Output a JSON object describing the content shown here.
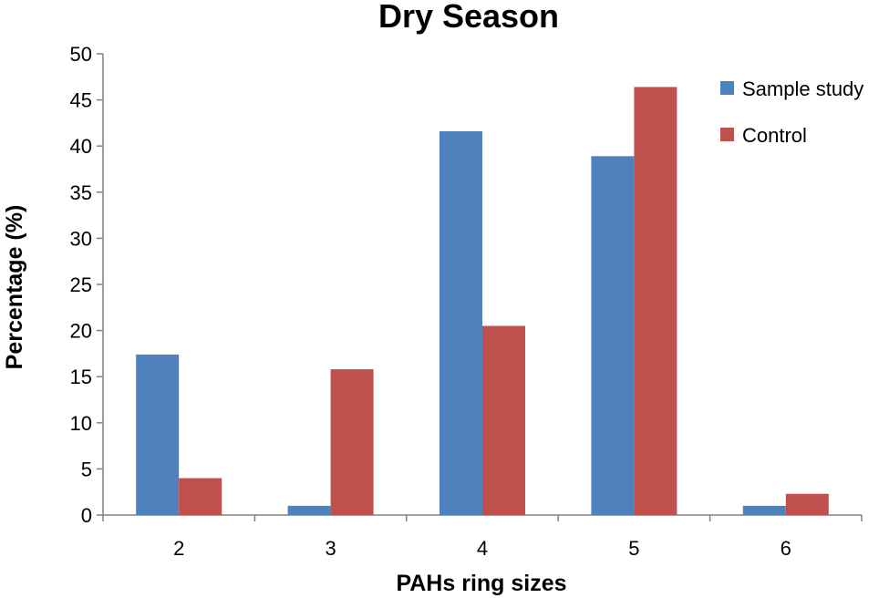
{
  "chart_data": {
    "type": "bar",
    "title": "Dry Season",
    "xlabel": "PAHs ring sizes",
    "ylabel": "Percentage (%)",
    "categories": [
      "2",
      "3",
      "4",
      "5",
      "6"
    ],
    "series": [
      {
        "name": "Sample study",
        "color": "#4f81bd",
        "values": [
          17.4,
          1.0,
          41.6,
          38.9,
          1.0
        ]
      },
      {
        "name": "Control",
        "color": "#c0504d",
        "values": [
          4.0,
          15.8,
          20.5,
          46.4,
          2.3
        ]
      }
    ],
    "ylim": [
      0,
      50
    ],
    "yticks": [
      0,
      5,
      10,
      15,
      20,
      25,
      30,
      35,
      40,
      45,
      50
    ],
    "grid": false,
    "legend": "top-right"
  }
}
